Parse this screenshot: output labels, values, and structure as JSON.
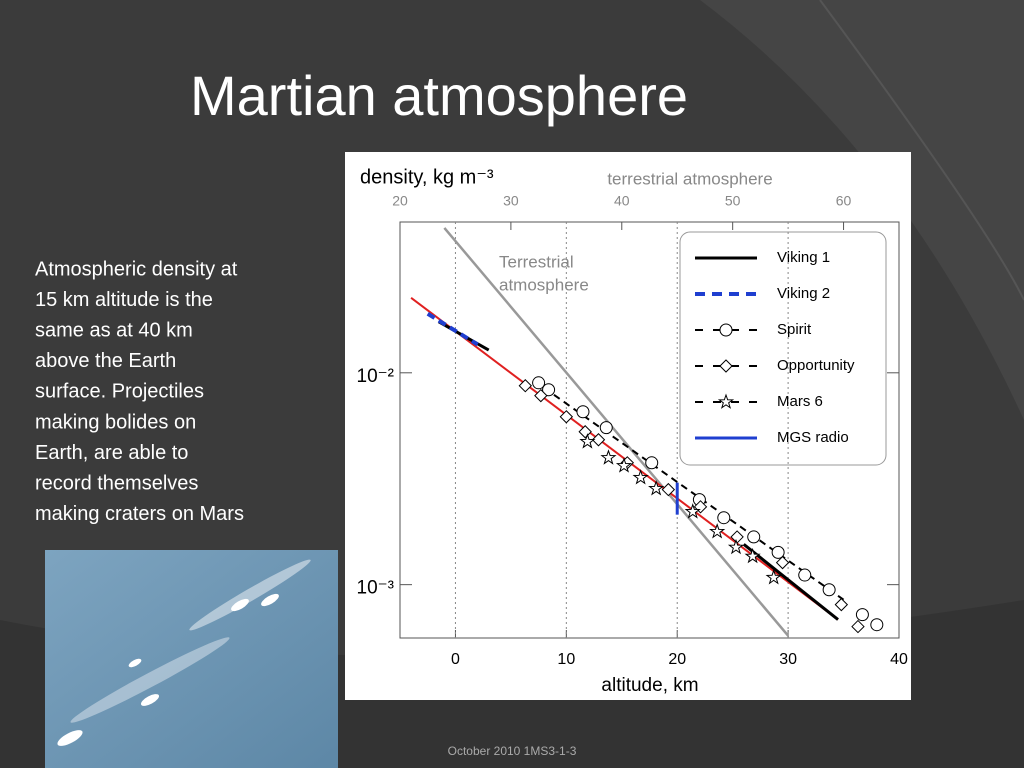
{
  "slide": {
    "title": "Martian atmosphere",
    "body": [
      "Atmospheric density at",
      "15 km altitude is the",
      "same as at 40 km",
      "above the Earth",
      "surface. Projectiles",
      "making bolides on",
      "Earth, are able to",
      "record themselves",
      "making craters on Mars"
    ],
    "footer": "October 2010 1MS3-1-3"
  },
  "chart_data": {
    "type": "line",
    "x_label": "altitude, km",
    "y_label": "density, kg m⁻³",
    "x2_label": "terrestrial atmosphere",
    "annotation": [
      "Terrestrial",
      "atmosphere"
    ],
    "xlim": [
      -5,
      40
    ],
    "xticks": [
      0,
      10,
      20,
      30,
      40
    ],
    "x2lim": [
      20,
      65
    ],
    "x2ticks": [
      20,
      30,
      40,
      50,
      60
    ],
    "ylim": [
      0.00056,
      0.0515
    ],
    "yticks": [
      {
        "value": 0.01,
        "label": "10⁻²"
      },
      {
        "value": 0.001,
        "label": "10⁻³"
      }
    ],
    "log_y": true,
    "grid_x": true,
    "legend": "upper right",
    "fit_line": {
      "color": "#e02020",
      "x": [
        -4,
        34.5
      ],
      "values": [
        0.0226,
        0.000684
      ]
    },
    "terrestrial_line": {
      "color": "#999999",
      "x": [
        -1,
        30
      ],
      "values": [
        0.0483,
        0.000574
      ]
    },
    "trend_line": {
      "color": "#000000",
      "x": [
        8,
        35
      ],
      "values": [
        0.00849,
        0.000849
      ]
    },
    "series": [
      {
        "name": "Viking 1",
        "color": "#000000",
        "line": "solid",
        "marker": null,
        "x": [
          -1.5,
          3,
          null,
          26,
          34.5
        ],
        "values": [
          0.0174,
          0.0128,
          null,
          0.00155,
          0.000684
        ]
      },
      {
        "name": "Viking 2",
        "color": "#1f3fd0",
        "line": "dashed",
        "marker": null,
        "x": [
          -2.5,
          2
        ],
        "values": [
          0.019,
          0.0136
        ]
      },
      {
        "name": "Spirit",
        "color": "#000000",
        "line": "dashed",
        "marker": "circle",
        "x": [
          7.5,
          8.4,
          11.5,
          13.6,
          17.7,
          22,
          24.2,
          26.9,
          29.1,
          31.5,
          33.7,
          36.7,
          38
        ],
        "values": [
          0.00897,
          0.00832,
          0.00655,
          0.00551,
          0.00376,
          0.00252,
          0.00207,
          0.00168,
          0.00142,
          0.00111,
          0.000946,
          0.000722,
          0.000647
        ]
      },
      {
        "name": "Opportunity",
        "color": "#000000",
        "line": "dashed",
        "marker": "diamond",
        "x": [
          6.3,
          7.7,
          10,
          11.7,
          12.9,
          15.5,
          19.2,
          22.1,
          25.4,
          29.5,
          34.8,
          36.3
        ],
        "values": [
          0.00869,
          0.0078,
          0.0062,
          0.00527,
          0.00483,
          0.00376,
          0.00281,
          0.00233,
          0.00168,
          0.00127,
          0.000805,
          0.000634
        ]
      },
      {
        "name": "Mars 6",
        "color": "#000000",
        "line": "dashed",
        "marker": "star",
        "x": [
          11.9,
          13.8,
          15.2,
          16.7,
          18.1,
          21.4,
          23.6,
          25.3,
          26.8,
          28.7
        ],
        "values": [
          0.00473,
          0.00397,
          0.00364,
          0.0032,
          0.00284,
          0.00221,
          0.00178,
          0.0015,
          0.00136,
          0.00108
        ]
      },
      {
        "name": "MGS radio",
        "color": "#1f3fd0",
        "line": "solid",
        "marker": null,
        "x": [
          20,
          20
        ],
        "values": [
          0.00303,
          0.00214
        ]
      }
    ]
  }
}
